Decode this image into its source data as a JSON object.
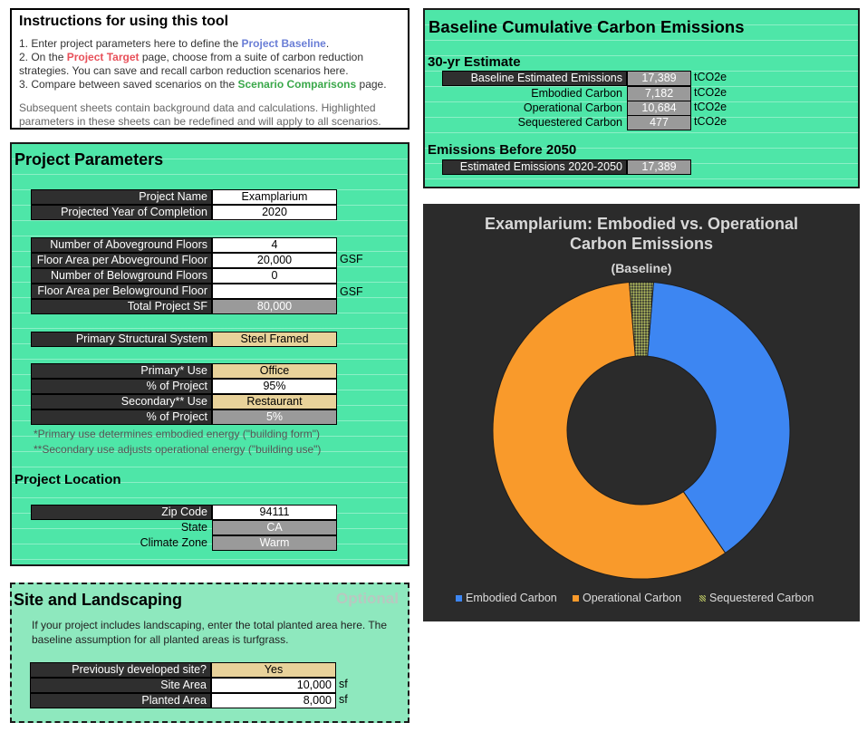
{
  "instructions": {
    "title": "Instructions for using this tool",
    "step1_pre": "1. Enter project parameters here to define the ",
    "step1_link": "Project Baseline",
    "step1_post": ".",
    "step2_pre": "2. On the ",
    "step2_link": "Project Target",
    "step2_post": " page, choose from a suite of carbon reduction strategies. You can save and recall carbon reduction scenarios here.",
    "step3_pre": "3. Compare between saved scenarios on the ",
    "step3_link": "Scenario Comparisons",
    "step3_post": " page.",
    "footer": "Subsequent sheets contain background data and calculations. Highlighted parameters in these sheets can be redefined and will apply to all scenarios."
  },
  "params": {
    "title": "Project Parameters",
    "project_name_label": "Project Name",
    "project_name": "Examplarium",
    "year_label": "Projected Year of Completion",
    "year": "2020",
    "above_floors_label": "Number of Aboveground Floors",
    "above_floors": "4",
    "above_area_label": "Floor Area per Aboveground Floor",
    "above_area": "20,000",
    "above_area_unit": "GSF",
    "below_floors_label": "Number of Belowground Floors",
    "below_floors": "0",
    "below_area_label": "Floor Area per Belowground Floor",
    "below_area": "",
    "below_area_unit": "GSF",
    "total_sf_label": "Total Project SF",
    "total_sf": "80,000",
    "structural_label": "Primary Structural System",
    "structural": "Steel Framed",
    "primary_use_label": "Primary* Use",
    "primary_use": "Office",
    "primary_pct_label": "% of Project",
    "primary_pct": "95%",
    "secondary_use_label": "Secondary** Use",
    "secondary_use": "Restaurant",
    "secondary_pct_label": "% of Project",
    "secondary_pct": "5%",
    "note1": "*Primary use determines embodied energy (\"building form\")",
    "note2": "**Secondary use adjusts operational energy (\"building use\")"
  },
  "location": {
    "title": "Project Location",
    "zip_label": "Zip Code",
    "zip": "94111",
    "state_label": "State",
    "state": "CA",
    "climate_label": "Climate Zone",
    "climate": "Warm"
  },
  "site": {
    "title": "Site and Landscaping",
    "optional": "Optional",
    "desc": "If your project includes landscaping, enter the total planted area here. The baseline assumption for all planted areas is turfgrass.",
    "developed_label": "Previously developed site?",
    "developed": "Yes",
    "site_area_label": "Site Area",
    "site_area": "10,000",
    "site_area_unit": "sf",
    "planted_label": "Planted Area",
    "planted": "8,000",
    "planted_unit": "sf"
  },
  "baseline": {
    "title": "Baseline Cumulative Carbon Emissions",
    "estimate_title": "30-yr Estimate",
    "baseline_label": "Baseline Estimated Emissions",
    "baseline_value": "17,389",
    "embodied_label": "Embodied Carbon",
    "embodied_value": "7,182",
    "operational_label": "Operational Carbon",
    "operational_value": "10,684",
    "sequestered_label": "Sequestered Carbon",
    "sequestered_value": "477",
    "unit": "tCO2e",
    "before2050_title": "Emissions Before 2050",
    "est2050_label": "Estimated Emissions 2020-2050",
    "est2050_value": "17,389"
  },
  "chart_data": {
    "type": "pie",
    "title": "Examplarium: Embodied vs. Operational Carbon Emissions",
    "subtitle": "(Baseline)",
    "categories": [
      "Embodied Carbon",
      "Operational Carbon",
      "Sequestered Carbon"
    ],
    "values": [
      7182,
      10684,
      477
    ],
    "colors": [
      "#3d86f2",
      "#f99a2b",
      "#7c8a3c"
    ],
    "legend_position": "bottom"
  },
  "colors": {
    "panel_green": "#4ee6a8",
    "site_green": "#8ee8be",
    "chart_bg": "#2b2b2b",
    "label_dark": "#2f2f2f",
    "input_tan": "#e8d29a",
    "calc_gray": "#9a9a9a"
  }
}
